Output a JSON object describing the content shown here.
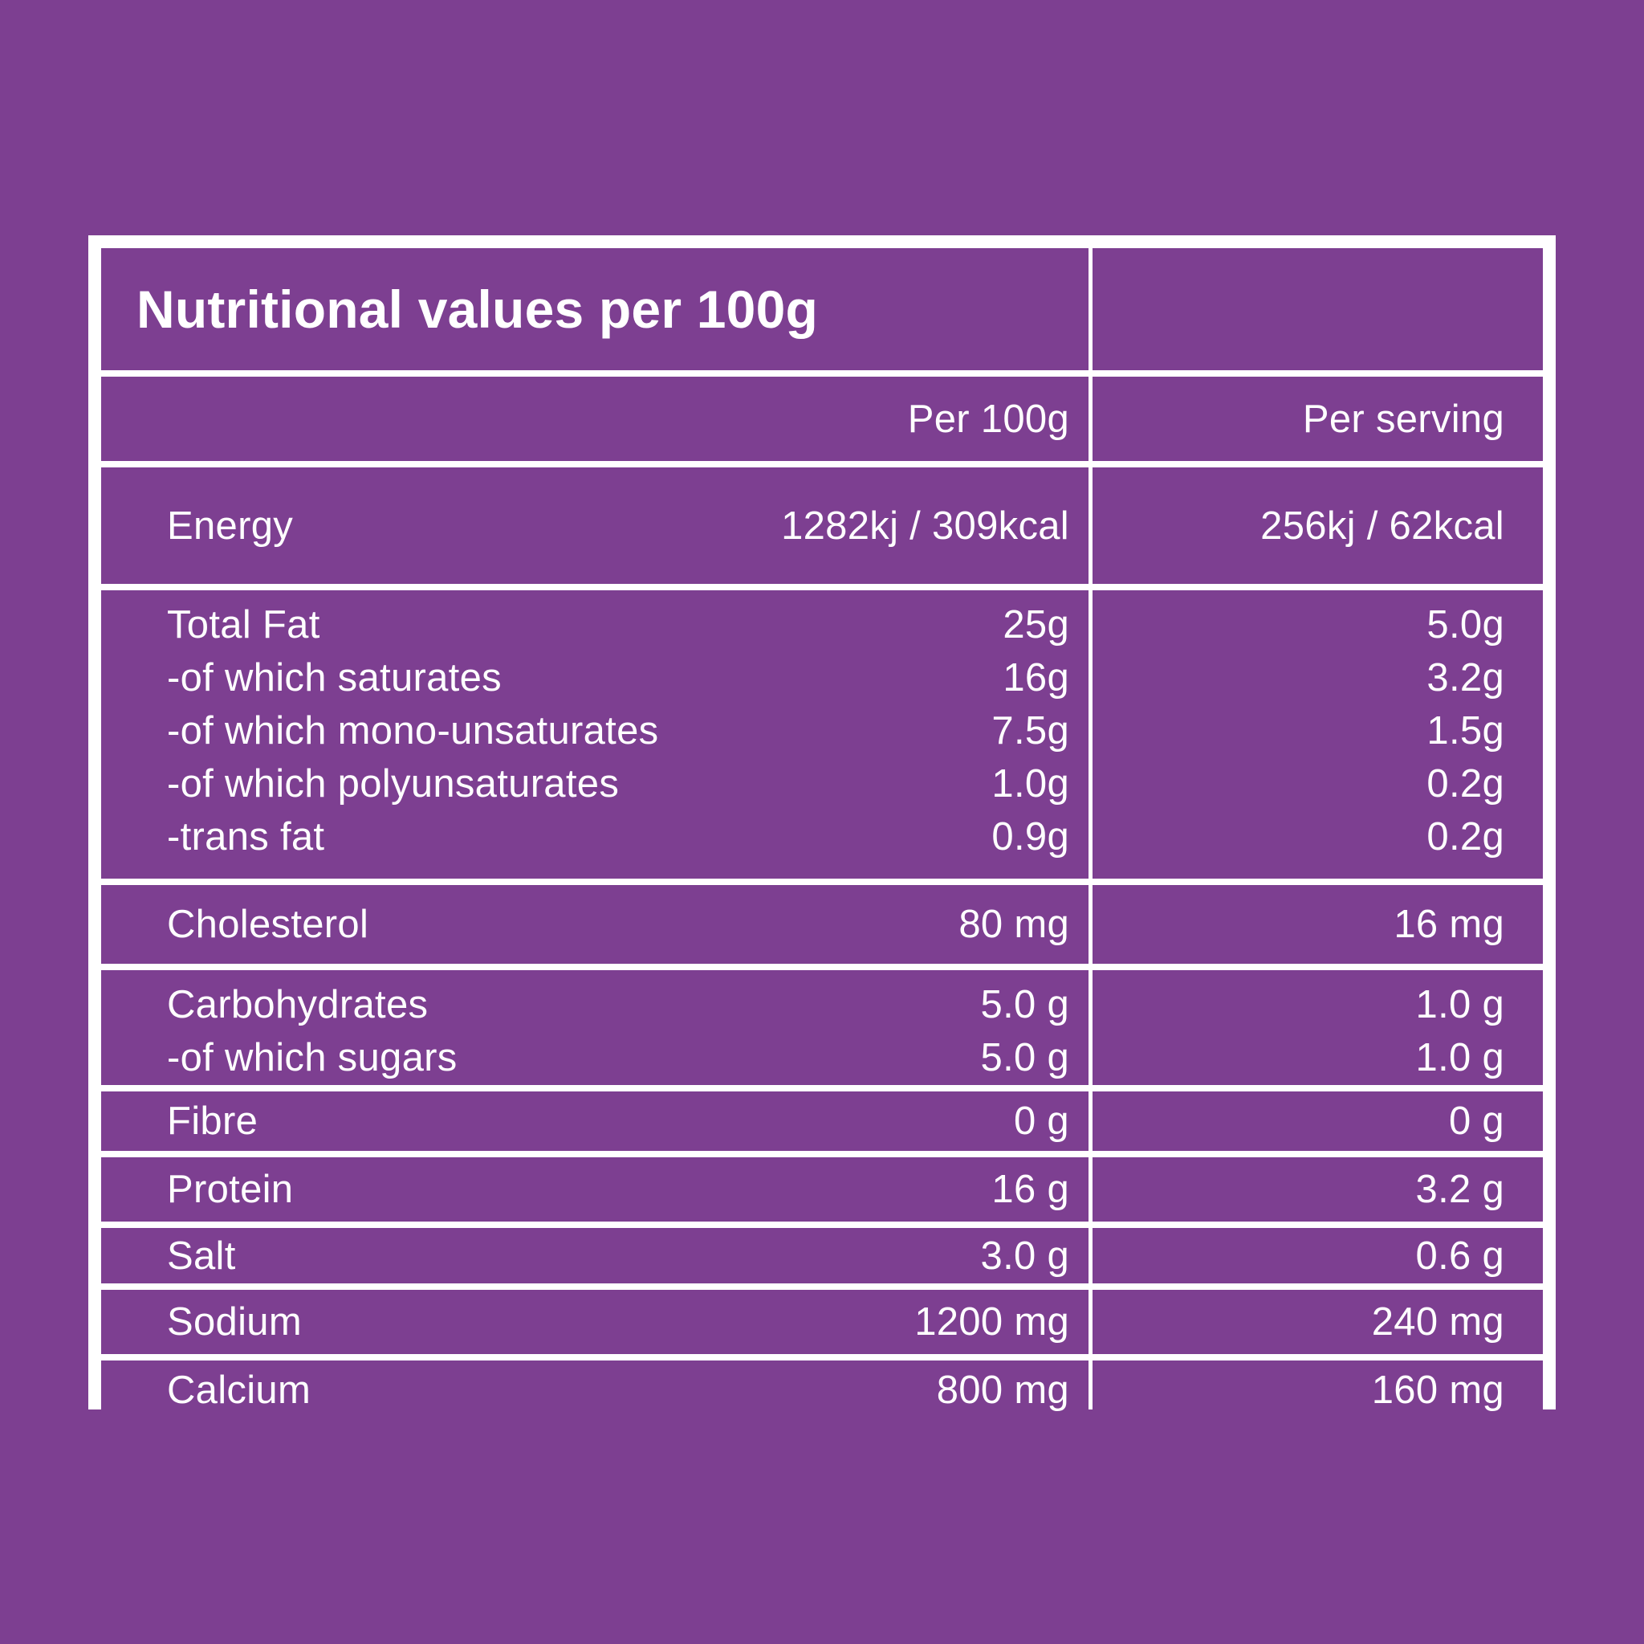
{
  "title": "Nutritional values per 100g",
  "header": {
    "per_100g": "Per 100g",
    "per_serving": "Per serving"
  },
  "energy": {
    "name": "Energy",
    "per_100g": "1282kj / 309kcal",
    "per_serving": "256kj / 62kcal"
  },
  "fat": [
    {
      "name": "Total Fat",
      "per_100g": "25g",
      "per_serving": "5.0g"
    },
    {
      "name": "-of which saturates",
      "per_100g": "16g",
      "per_serving": "3.2g"
    },
    {
      "name": "-of which mono-unsaturates",
      "per_100g": "7.5g",
      "per_serving": "1.5g"
    },
    {
      "name": "-of which polyunsaturates",
      "per_100g": "1.0g",
      "per_serving": "0.2g"
    },
    {
      "name": "-trans fat",
      "per_100g": "0.9g",
      "per_serving": "0.2g"
    }
  ],
  "cholesterol": {
    "name": "Cholesterol",
    "per_100g": "80 mg",
    "per_serving": "16 mg"
  },
  "carbs": [
    {
      "name": "Carbohydrates",
      "per_100g": "5.0 g",
      "per_serving": "1.0 g"
    },
    {
      "name": "-of which sugars",
      "per_100g": "5.0 g",
      "per_serving": "1.0 g"
    }
  ],
  "fibre": {
    "name": "Fibre",
    "per_100g": "0 g",
    "per_serving": "0 g"
  },
  "protein": {
    "name": "Protein",
    "per_100g": "16 g",
    "per_serving": "3.2 g"
  },
  "salt": {
    "name": "Salt",
    "per_100g": "3.0 g",
    "per_serving": "0.6 g"
  },
  "sodium": {
    "name": "Sodium",
    "per_100g": "1200 mg",
    "per_serving": "240 mg"
  },
  "calcium": {
    "name": "Calcium",
    "per_100g": "800 mg",
    "per_serving": "160 mg"
  },
  "colors": {
    "background": "#7d3f91",
    "border": "#ffffff",
    "text": "#ffffff"
  }
}
